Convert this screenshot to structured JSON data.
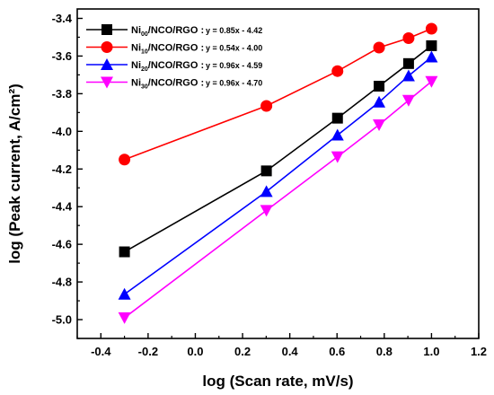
{
  "chart_data": {
    "type": "line",
    "xlabel": "log (Scan rate, mV/s)",
    "ylabel": "log (Peak current, A/cm²)",
    "xlim": [
      -0.5,
      1.2
    ],
    "ylim": [
      -5.1,
      -3.35
    ],
    "xticks": [
      "-0.4",
      "-0.2",
      "0.0",
      "0.2",
      "0.4",
      "0.6",
      "0.8",
      "1.0",
      "1.2"
    ],
    "yticks": [
      "-3.4",
      "-3.6",
      "-3.8",
      "-4.0",
      "-4.2",
      "-4.4",
      "-4.6",
      "-4.8",
      "-5.0"
    ],
    "xtick_values": [
      -0.4,
      -0.2,
      0.0,
      0.2,
      0.4,
      0.6,
      0.8,
      1.0,
      1.2
    ],
    "ytick_values": [
      -3.4,
      -3.6,
      -3.8,
      -4.0,
      -4.2,
      -4.4,
      -4.6,
      -4.8,
      -5.0
    ],
    "x": [
      -0.3,
      0.301,
      0.602,
      0.778,
      0.903,
      1.0
    ],
    "legend_position": "top-left",
    "grid": false,
    "series": [
      {
        "name_prefix": "Ni",
        "name_sub": "00",
        "name_suffix": "/NCO/RGO :",
        "equation": "y = 0.85x - 4.42",
        "color": "#000000",
        "marker": "square",
        "values": [
          -4.64,
          -4.21,
          -3.93,
          -3.76,
          -3.64,
          -3.545
        ]
      },
      {
        "name_prefix": "Ni",
        "name_sub": "10",
        "name_suffix": "/NCO/RGO :",
        "equation": "y = 0.54x -  4.00",
        "color": "#ff0000",
        "marker": "circle",
        "values": [
          -4.15,
          -3.865,
          -3.68,
          -3.555,
          -3.505,
          -3.455
        ]
      },
      {
        "name_prefix": "Ni",
        "name_sub": "20",
        "name_suffix": "/NCO/RGO :",
        "equation": "y = 0.96x - 4.59",
        "color": "#0000ff",
        "marker": "triangle-up",
        "values": [
          -4.865,
          -4.32,
          -4.02,
          -3.845,
          -3.705,
          -3.605
        ]
      },
      {
        "name_prefix": "Ni",
        "name_sub": "30",
        "name_suffix": "/NCO/RGO :",
        "equation": "y = 0.96x - 4.70",
        "color": "#ff00ff",
        "marker": "triangle-down",
        "values": [
          -4.99,
          -4.42,
          -4.135,
          -3.965,
          -3.835,
          -3.735
        ]
      }
    ]
  }
}
